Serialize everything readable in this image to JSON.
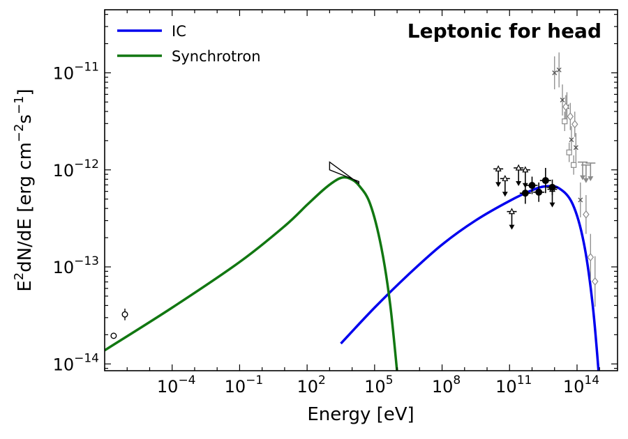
{
  "chart_data": {
    "type": "line",
    "title": "Leptonic for head",
    "xlabel": "Energy [eV]",
    "ylabel_base": "E",
    "ylabel_sup1": "2",
    "ylabel_mid": "dN/dE [erg cm",
    "ylabel_sup2": "−2",
    "ylabel_s": "s",
    "ylabel_sup3": "−1",
    "ylabel_end": "]",
    "xscale": "log",
    "yscale": "log",
    "xlim_log10": [
      -7,
      15.8
    ],
    "ylim_log10": [
      -14.07,
      -10.35
    ],
    "x_ticks": [
      {
        "base": "10",
        "exp": "−4",
        "log10": -4
      },
      {
        "base": "10",
        "exp": "−1",
        "log10": -1
      },
      {
        "base": "10",
        "exp": "2",
        "log10": 2
      },
      {
        "base": "10",
        "exp": "5",
        "log10": 5
      },
      {
        "base": "10",
        "exp": "8",
        "log10": 8
      },
      {
        "base": "10",
        "exp": "11",
        "log10": 11
      },
      {
        "base": "10",
        "exp": "14",
        "log10": 14
      }
    ],
    "y_ticks": [
      {
        "base": "10",
        "exp": "−11",
        "log10": -11
      },
      {
        "base": "10",
        "exp": "−12",
        "log10": -12
      },
      {
        "base": "10",
        "exp": "−13",
        "log10": -13
      },
      {
        "base": "10",
        "exp": "−14",
        "log10": -14
      }
    ],
    "legend": [
      {
        "label": "IC",
        "color": "#0000ee"
      },
      {
        "label": "Synchrotron",
        "color": "#117711"
      }
    ],
    "series": [
      {
        "name": "IC",
        "color": "#0000ee",
        "points_log10": [
          [
            3.5,
            -13.79
          ],
          [
            5,
            -13.42
          ],
          [
            6.5,
            -13.08
          ],
          [
            8,
            -12.77
          ],
          [
            9.5,
            -12.52
          ],
          [
            11,
            -12.32
          ],
          [
            12,
            -12.21
          ],
          [
            12.6,
            -12.17
          ],
          [
            13.2,
            -12.19
          ],
          [
            13.8,
            -12.35
          ],
          [
            14.3,
            -12.75
          ],
          [
            14.7,
            -13.4
          ],
          [
            15,
            -14.2
          ]
        ]
      },
      {
        "name": "Synchrotron",
        "color": "#117711",
        "points_log10": [
          [
            -7,
            -13.86
          ],
          [
            -4,
            -13.42
          ],
          [
            -1,
            -12.95
          ],
          [
            1,
            -12.58
          ],
          [
            2,
            -12.36
          ],
          [
            2.7,
            -12.21
          ],
          [
            3.2,
            -12.12
          ],
          [
            3.55,
            -12.08
          ],
          [
            3.9,
            -12.09
          ],
          [
            4.3,
            -12.16
          ],
          [
            4.8,
            -12.35
          ],
          [
            5.3,
            -12.8
          ],
          [
            5.7,
            -13.4
          ],
          [
            6.05,
            -14.2
          ]
        ]
      }
    ],
    "data_points": {
      "radio_open_circles": [
        {
          "log10_x": -6.6,
          "log10_y": -13.71,
          "err": 0.02
        },
        {
          "log10_x": -6.1,
          "log10_y": -13.49,
          "err": 0.06
        }
      ],
      "xray_bowtie": {
        "log10_x": [
          3.0,
          4.3
        ],
        "log10_y_top": [
          -11.92,
          -12.14
        ],
        "log10_y_bottom": [
          -12.0,
          -12.12
        ]
      },
      "gamma_filled_circles": [
        {
          "log10_x": 11.7,
          "log10_y": -12.24,
          "err": 0.11
        },
        {
          "log10_x": 12.0,
          "log10_y": -12.16,
          "err": 0.09
        },
        {
          "log10_x": 12.3,
          "log10_y": -12.23,
          "err": 0.1
        },
        {
          "log10_x": 12.6,
          "log10_y": -12.11,
          "err": 0.13
        },
        {
          "log10_x": 12.9,
          "log10_y": -12.18,
          "err": 0.08
        }
      ],
      "gamma_triangles_ul": [
        {
          "log10_x": 10.5,
          "log10_y": -11.99
        },
        {
          "log10_x": 10.8,
          "log10_y": -12.09
        },
        {
          "log10_x": 11.1,
          "log10_y": -12.43
        },
        {
          "log10_x": 11.4,
          "log10_y": -11.98
        },
        {
          "log10_x": 11.7,
          "log10_y": -12.0
        },
        {
          "log10_x": 12.9,
          "log10_y": -12.2
        }
      ],
      "gray_crosses": [
        {
          "log10_x": 13.0,
          "log10_y": -11.0,
          "err": 0.17
        },
        {
          "log10_x": 13.2,
          "log10_y": -10.97,
          "err": 0.18
        },
        {
          "log10_x": 13.35,
          "log10_y": -11.28,
          "err": 0.16
        },
        {
          "log10_x": 13.55,
          "log10_y": -11.35,
          "err": 0.15
        },
        {
          "log10_x": 13.75,
          "log10_y": -11.69,
          "err": 0.14
        },
        {
          "log10_x": 13.95,
          "log10_y": -11.77,
          "err": 0.15
        },
        {
          "log10_x": 14.15,
          "log10_y": -12.31,
          "err": 0.18
        }
      ],
      "gray_squares": [
        {
          "log10_x": 13.45,
          "log10_y": -11.5,
          "err": 0.1
        },
        {
          "log10_x": 13.65,
          "log10_y": -11.82,
          "err": 0.1
        },
        {
          "log10_x": 13.85,
          "log10_y": -11.95,
          "err": 0.1
        }
      ],
      "gray_diamonds": [
        {
          "log10_x": 13.5,
          "log10_y": -11.35,
          "err": 0.12
        },
        {
          "log10_x": 13.7,
          "log10_y": -11.45,
          "err": 0.14
        },
        {
          "log10_x": 13.9,
          "log10_y": -11.53,
          "err": 0.13
        },
        {
          "log10_x": 14.4,
          "log10_y": -12.46,
          "err": 0.2
        },
        {
          "log10_x": 14.6,
          "log10_y": -12.9,
          "err": 0.24
        },
        {
          "log10_x": 14.8,
          "log10_y": -13.15,
          "err": 0.26
        }
      ],
      "gray_ul_arrows": [
        {
          "log10_x": 14.4,
          "log10_y": -11.95
        },
        {
          "log10_x": 14.6,
          "log10_y": -11.93
        },
        {
          "log10_x": 14.25,
          "log10_y": -11.92
        }
      ]
    }
  }
}
